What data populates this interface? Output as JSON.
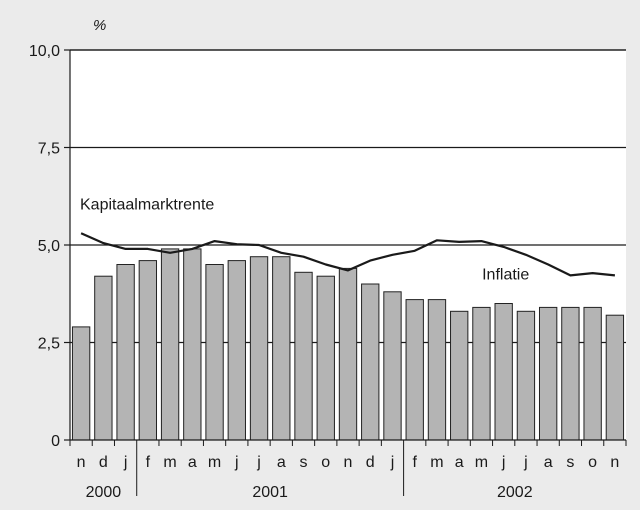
{
  "colors": {
    "background": "#ebebeb",
    "plot_background": "#ffffff",
    "bar_fill": "#b4b4b4",
    "bar_stroke": "#222222",
    "line": "#1a1a1a",
    "grid": "#1a1a1a"
  },
  "chart_data": {
    "type": "bar",
    "y_unit_label": "%",
    "ylim": [
      0,
      10
    ],
    "yticks": [
      "0",
      "2,5",
      "5,0",
      "7,5",
      "10,0"
    ],
    "ytick_values": [
      0,
      2.5,
      5,
      7.5,
      10
    ],
    "grid": true,
    "categories": [
      "n",
      "d",
      "j",
      "f",
      "m",
      "a",
      "m",
      "j",
      "j",
      "a",
      "s",
      "o",
      "n",
      "d",
      "j",
      "f",
      "m",
      "a",
      "m",
      "j",
      "j",
      "a",
      "s",
      "o",
      "n"
    ],
    "year_groups": [
      {
        "label": "2000",
        "start": 0,
        "end": 2
      },
      {
        "label": "2001",
        "start": 3,
        "end": 14
      },
      {
        "label": "2002",
        "start": 15,
        "end": 24
      }
    ],
    "series": [
      {
        "name": "Inflatie",
        "kind": "bar",
        "values": [
          2.9,
          4.2,
          4.5,
          4.6,
          4.9,
          4.9,
          4.5,
          4.6,
          4.7,
          4.7,
          4.3,
          4.2,
          4.4,
          4.0,
          3.8,
          3.6,
          3.6,
          3.3,
          3.4,
          3.5,
          3.3,
          3.4,
          3.4,
          3.4,
          3.2
        ]
      },
      {
        "name": "Kapitaalmarktrente",
        "kind": "line",
        "values": [
          5.3,
          5.05,
          4.9,
          4.9,
          4.8,
          4.9,
          5.1,
          5.02,
          5.0,
          4.8,
          4.7,
          4.5,
          4.35,
          4.6,
          4.75,
          4.85,
          5.12,
          5.08,
          5.1,
          4.95,
          4.75,
          4.5,
          4.22,
          4.28,
          4.22
        ]
      }
    ],
    "annotations": [
      {
        "text": "Kapitaalmarktrente",
        "series": "Kapitaalmarktrente"
      },
      {
        "text": "Inflatie",
        "series": "Inflatie"
      }
    ]
  }
}
